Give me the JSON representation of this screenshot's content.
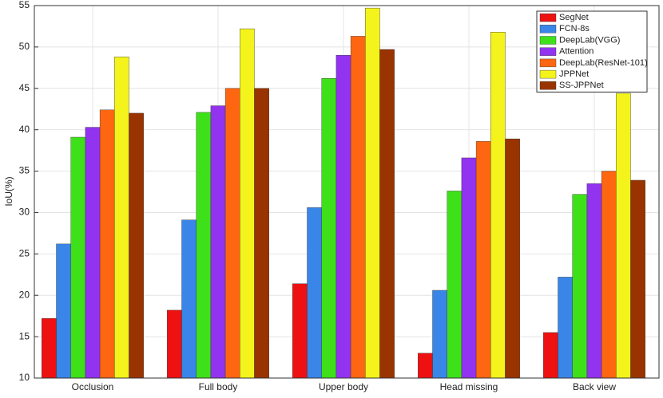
{
  "chart_data": {
    "type": "bar",
    "y_label": "IoU(%)",
    "categories": [
      "Occlusion",
      "Full body",
      "Upper body",
      "Head missing",
      "Back view"
    ],
    "series": [
      {
        "name": "SegNet",
        "color": "#ee1111",
        "values": [
          17.2,
          18.2,
          21.4,
          13.0,
          15.5
        ]
      },
      {
        "name": "FCN-8s",
        "color": "#3a86e8",
        "values": [
          26.2,
          29.1,
          30.6,
          20.6,
          22.2
        ]
      },
      {
        "name": "DeepLab(VGG)",
        "color": "#3ee01a",
        "values": [
          39.1,
          42.1,
          46.2,
          32.6,
          32.2
        ]
      },
      {
        "name": "Attention",
        "color": "#9233f0",
        "values": [
          40.3,
          42.9,
          49.0,
          36.6,
          33.5
        ]
      },
      {
        "name": "DeepLab(ResNet-101)",
        "color": "#ff6611",
        "values": [
          42.4,
          45.0,
          51.3,
          38.6,
          35.0
        ]
      },
      {
        "name": "JPPNet",
        "color": "#f4f41c",
        "values": [
          48.8,
          52.2,
          54.7,
          51.8,
          44.4
        ]
      },
      {
        "name": "SS-JPPNet",
        "color": "#993300",
        "values": [
          42.0,
          45.0,
          49.7,
          38.9,
          33.9
        ]
      }
    ],
    "ylim": [
      10,
      55
    ],
    "yticks": [
      10,
      15,
      20,
      25,
      30,
      35,
      40,
      45,
      50,
      55
    ],
    "grid": true,
    "legend": "top-right"
  }
}
